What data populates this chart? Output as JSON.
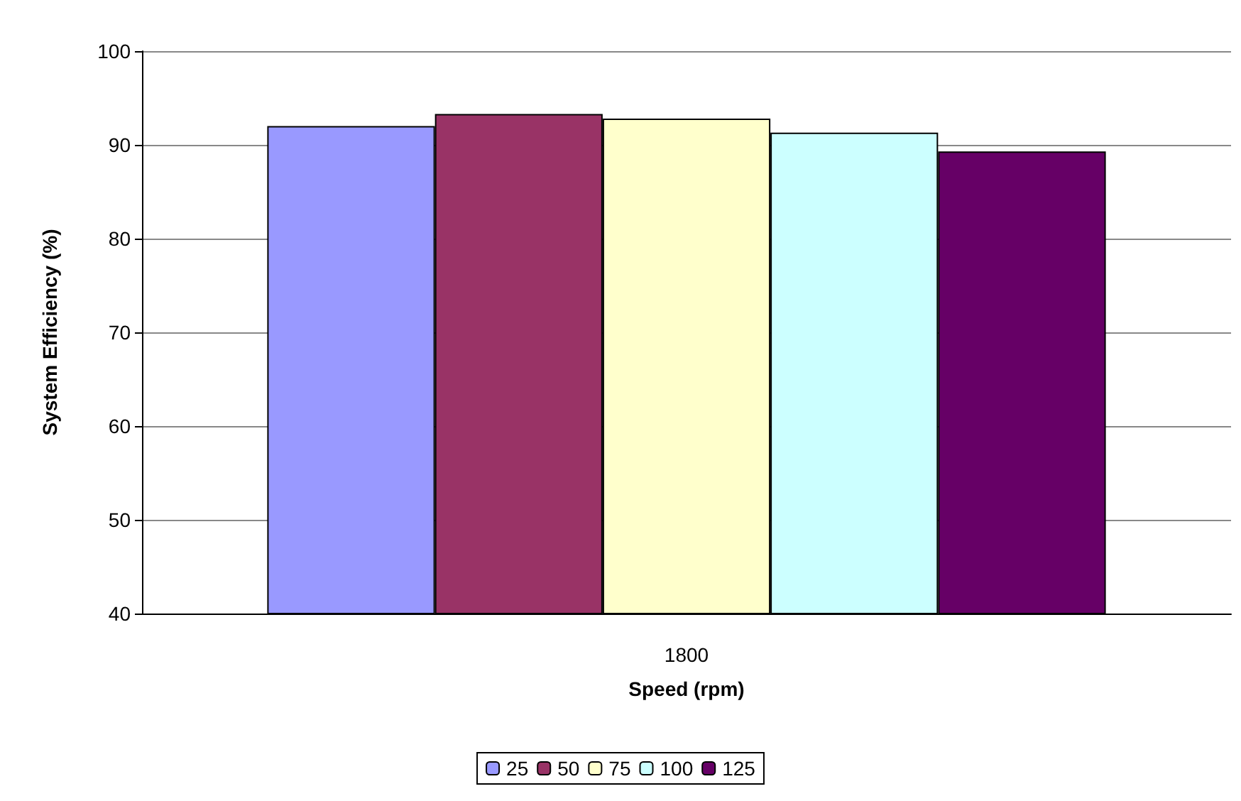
{
  "chart_data": {
    "type": "bar",
    "xlabel": "Speed (rpm)",
    "ylabel": "System Efficiency (%)",
    "categories": [
      "1800"
    ],
    "series": [
      {
        "name": "25",
        "color": "#9999ff",
        "values": [
          92.0
        ]
      },
      {
        "name": "50",
        "color": "#993366",
        "values": [
          93.3
        ]
      },
      {
        "name": "75",
        "color": "#ffffcc",
        "values": [
          92.8
        ]
      },
      {
        "name": "100",
        "color": "#ccffff",
        "values": [
          91.3
        ]
      },
      {
        "name": "125",
        "color": "#660066",
        "values": [
          89.3
        ]
      }
    ],
    "ylim": [
      40,
      100
    ],
    "yticks": [
      40,
      50,
      60,
      70,
      80,
      90,
      100
    ],
    "grid": "y",
    "legend": "bottom"
  }
}
